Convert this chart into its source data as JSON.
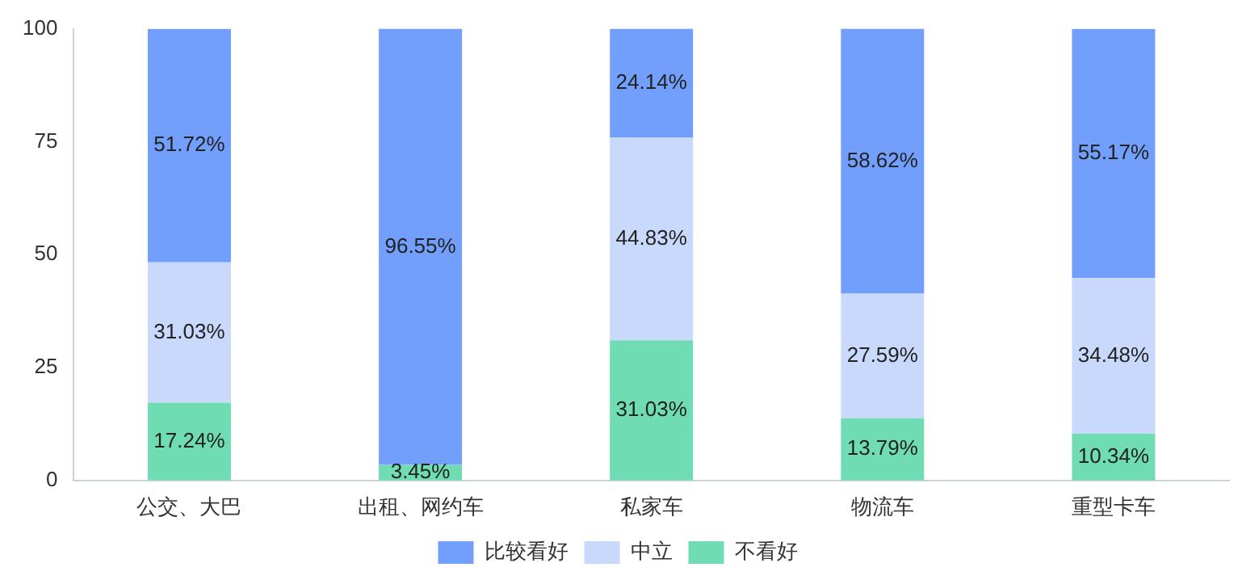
{
  "chart_data": {
    "type": "bar",
    "stacked": true,
    "categories": [
      "公交、大巴",
      "出租、网约车",
      "私家车",
      "物流车",
      "重型卡车"
    ],
    "series": [
      {
        "name": "不看好",
        "color": "#6fdcb3",
        "values": [
          17.24,
          3.45,
          31.03,
          13.79,
          10.34
        ],
        "value_labels": [
          "17.24%",
          "3.45%",
          "31.03%",
          "13.79%",
          "10.34%"
        ]
      },
      {
        "name": "中立",
        "color": "#c8d9fc",
        "values": [
          31.03,
          0,
          44.83,
          27.59,
          34.48
        ],
        "value_labels": [
          "31.03%",
          null,
          "44.83%",
          "27.59%",
          "34.48%"
        ]
      },
      {
        "name": "比较看好",
        "color": "#729ffc",
        "values": [
          51.72,
          96.55,
          24.14,
          58.62,
          55.17
        ],
        "value_labels": [
          "51.72%",
          "96.55%",
          "24.14%",
          "58.62%",
          "55.17%"
        ]
      }
    ],
    "ylim": [
      0,
      100
    ],
    "yticks": [
      0,
      25,
      50,
      75,
      100
    ],
    "grid": false,
    "legend": "bottom"
  }
}
